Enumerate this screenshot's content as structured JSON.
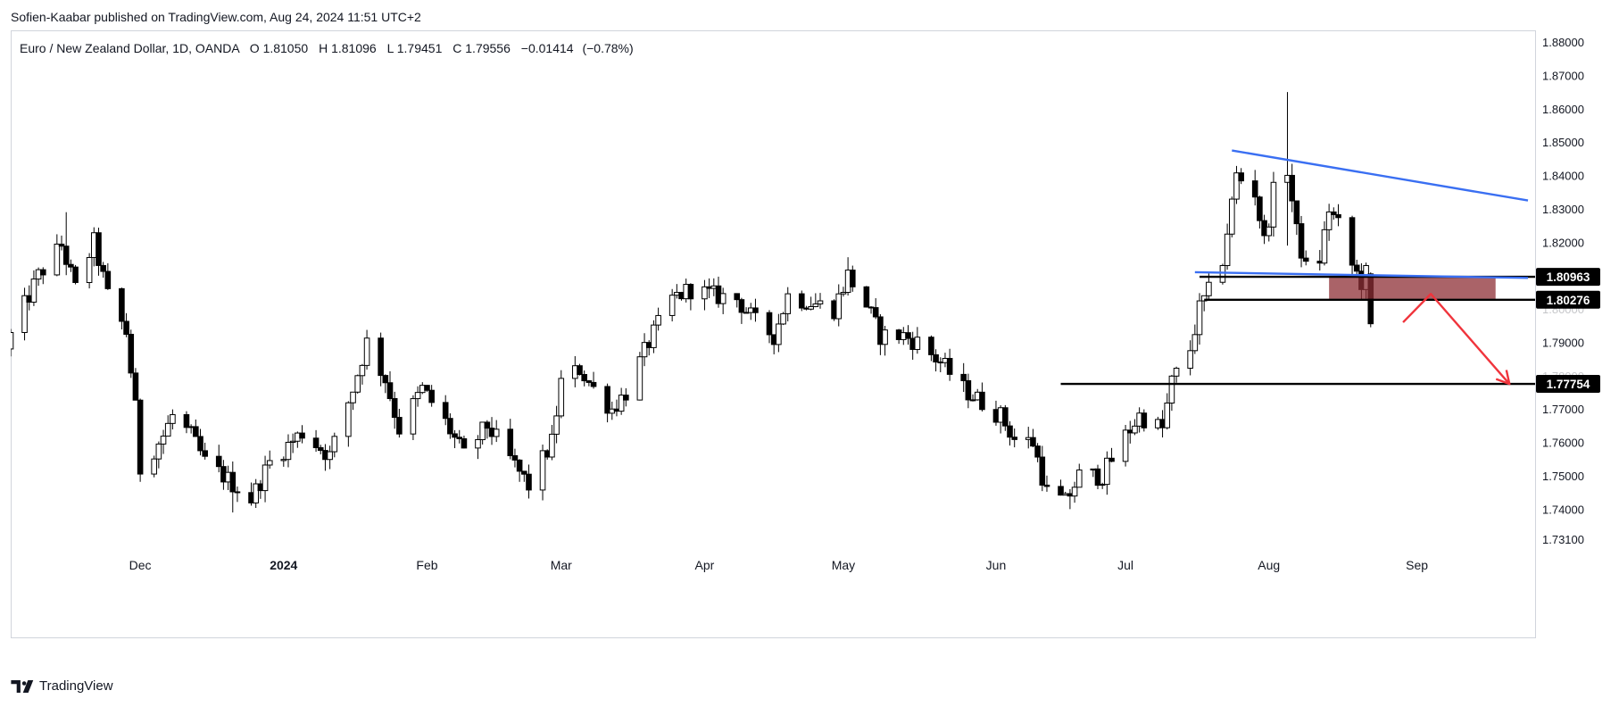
{
  "publisher_line": "Sofien-Kaabar published on TradingView.com, Aug 24, 2024 11:51 UTC+2",
  "brand_name": "TradingView",
  "colors": {
    "candle_up_fill": "#ffffff",
    "candle_down_fill": "#000000",
    "candle_border": "#000000",
    "trendline": "#3a6ff2",
    "level_line": "#000000",
    "zone_fill": "#8e2f36",
    "arrow": "#f0343c",
    "label_bg": "#000000",
    "label_text": "#ffffff"
  },
  "chart_data": {
    "type": "candlestick",
    "title": "Euro / New Zealand Dollar, 1D, OANDA",
    "ohlc_readout": {
      "open_label": "O",
      "open": "1.81050",
      "high_label": "H",
      "high": "1.81096",
      "low_label": "L",
      "low": "1.79451",
      "close_label": "C",
      "close": "1.79556",
      "change": "−0.01414",
      "change_pct": "(−0.78%)"
    },
    "x_range": [
      "2023-11-03",
      "2024-09-26"
    ],
    "ylim": [
      1.7235,
      1.8835
    ],
    "y_ticks": [
      "1.88000",
      "1.87000",
      "1.86000",
      "1.85000",
      "1.84000",
      "1.83000",
      "1.82000",
      "1.81000",
      "1.80000",
      "1.79000",
      "1.78000",
      "1.77000",
      "1.76000",
      "1.75000",
      "1.74000",
      "1.73100"
    ],
    "x_ticks": [
      {
        "label": "Dec",
        "date": "2023-12-01",
        "bold": false
      },
      {
        "label": "2024",
        "date": "2024-01-01",
        "bold": true
      },
      {
        "label": "Feb",
        "date": "2024-02-01",
        "bold": false
      },
      {
        "label": "Mar",
        "date": "2024-03-01",
        "bold": false
      },
      {
        "label": "Apr",
        "date": "2024-04-01",
        "bold": false
      },
      {
        "label": "May",
        "date": "2024-05-01",
        "bold": false
      },
      {
        "label": "Jun",
        "date": "2024-06-03",
        "bold": false
      },
      {
        "label": "Jul",
        "date": "2024-07-01",
        "bold": false
      },
      {
        "label": "Aug",
        "date": "2024-08-01",
        "bold": false
      },
      {
        "label": "Sep",
        "date": "2024-09-02",
        "bold": false
      }
    ],
    "path_points": [
      [
        "2023-11-03",
        1.792
      ],
      [
        "2023-11-09",
        1.81
      ],
      [
        "2023-11-14",
        1.819
      ],
      [
        "2023-11-17",
        1.806
      ],
      [
        "2023-11-21",
        1.82
      ],
      [
        "2023-11-24",
        1.804
      ],
      [
        "2023-11-28",
        1.793
      ],
      [
        "2023-11-30",
        1.77
      ],
      [
        "2023-12-01",
        1.752
      ],
      [
        "2023-12-06",
        1.762
      ],
      [
        "2023-12-08",
        1.768
      ],
      [
        "2023-12-12",
        1.762
      ],
      [
        "2023-12-15",
        1.754
      ],
      [
        "2023-12-19",
        1.75
      ],
      [
        "2023-12-25",
        1.743
      ],
      [
        "2023-12-29",
        1.754
      ],
      [
        "2024-01-05",
        1.763
      ],
      [
        "2024-01-11",
        1.756
      ],
      [
        "2024-01-16",
        1.776
      ],
      [
        "2024-01-19",
        1.79
      ],
      [
        "2024-01-23",
        1.779
      ],
      [
        "2024-01-26",
        1.764
      ],
      [
        "2024-01-31",
        1.776
      ],
      [
        "2024-02-05",
        1.766
      ],
      [
        "2024-02-09",
        1.756
      ],
      [
        "2024-02-14",
        1.765
      ],
      [
        "2024-02-19",
        1.755
      ],
      [
        "2024-02-23",
        1.747
      ],
      [
        "2024-02-28",
        1.76
      ],
      [
        "2024-03-01",
        1.778
      ],
      [
        "2024-03-05",
        1.782
      ],
      [
        "2024-03-08",
        1.776
      ],
      [
        "2024-03-12",
        1.77
      ],
      [
        "2024-03-15",
        1.775
      ],
      [
        "2024-03-20",
        1.79
      ],
      [
        "2024-03-25",
        1.803
      ],
      [
        "2024-03-29",
        1.806
      ],
      [
        "2024-04-03",
        1.804
      ],
      [
        "2024-04-08",
        1.803
      ],
      [
        "2024-04-12",
        1.796
      ],
      [
        "2024-04-16",
        1.792
      ],
      [
        "2024-04-19",
        1.804
      ],
      [
        "2024-04-24",
        1.802
      ],
      [
        "2024-04-29",
        1.8
      ],
      [
        "2024-05-02",
        1.81
      ],
      [
        "2024-05-06",
        1.801
      ],
      [
        "2024-05-09",
        1.792
      ],
      [
        "2024-05-14",
        1.792
      ],
      [
        "2024-05-17",
        1.79
      ],
      [
        "2024-05-22",
        1.784
      ],
      [
        "2024-05-27",
        1.776
      ],
      [
        "2024-05-31",
        1.772
      ],
      [
        "2024-06-04",
        1.768
      ],
      [
        "2024-06-07",
        1.761
      ],
      [
        "2024-06-11",
        1.76
      ],
      [
        "2024-06-14",
        1.745
      ],
      [
        "2024-06-18",
        1.742
      ],
      [
        "2024-06-21",
        1.75
      ],
      [
        "2024-06-26",
        1.75
      ],
      [
        "2024-07-01",
        1.762
      ],
      [
        "2024-07-04",
        1.768
      ],
      [
        "2024-07-09",
        1.764
      ],
      [
        "2024-07-11",
        1.778
      ],
      [
        "2024-07-15",
        1.788
      ],
      [
        "2024-07-17",
        1.8
      ],
      [
        "2024-07-19",
        1.805
      ],
      [
        "2024-07-22",
        1.815
      ],
      [
        "2024-07-25",
        1.84
      ],
      [
        "2024-07-29",
        1.835
      ],
      [
        "2024-07-31",
        1.82
      ],
      [
        "2024-08-02",
        1.835
      ],
      [
        "2024-08-05",
        1.842
      ],
      [
        "2024-08-07",
        1.823
      ],
      [
        "2024-08-09",
        1.812
      ],
      [
        "2024-08-12",
        1.815
      ],
      [
        "2024-08-14",
        1.83
      ],
      [
        "2024-08-16",
        1.825
      ],
      [
        "2024-08-19",
        1.813
      ],
      [
        "2024-08-21",
        1.808
      ],
      [
        "2024-08-22",
        1.8105
      ],
      [
        "2024-08-23",
        1.7956
      ]
    ],
    "extreme_bars": [
      {
        "date": "2023-11-15",
        "high": 1.829
      },
      {
        "date": "2023-12-21",
        "low": 1.739
      },
      {
        "date": "2024-05-02",
        "high": 1.8155
      },
      {
        "date": "2024-06-19",
        "low": 1.74
      },
      {
        "date": "2024-08-05",
        "high": 1.865,
        "low": 1.819
      }
    ],
    "last_bar": {
      "date": "2024-08-23",
      "open": 1.8105,
      "high": 1.81096,
      "low": 1.79451,
      "close": 1.79556
    },
    "trendlines": [
      {
        "name": "upper-resistance",
        "from": [
          "2024-07-24",
          1.8475
        ],
        "to": [
          "2024-09-26",
          1.8325
        ]
      },
      {
        "name": "neckline",
        "from": [
          "2024-07-16",
          1.811
        ],
        "to": [
          "2024-09-26",
          1.8093
        ]
      }
    ],
    "horizontal_levels": [
      {
        "value": 1.80963,
        "label": "1.80963",
        "from": "2024-07-17"
      },
      {
        "value": 1.80276,
        "label": "1.80276",
        "from": "2024-07-18"
      },
      {
        "value": 1.77754,
        "label": "1.77754",
        "from": "2024-06-17"
      }
    ],
    "zone": {
      "from": "2024-08-14",
      "to": "2024-09-19",
      "top": 1.8096,
      "bottom": 1.803
    },
    "arrow_path": [
      [
        "2024-08-30",
        1.796
      ],
      [
        "2024-09-05",
        1.8045
      ],
      [
        "2024-09-22",
        1.7775
      ]
    ]
  }
}
